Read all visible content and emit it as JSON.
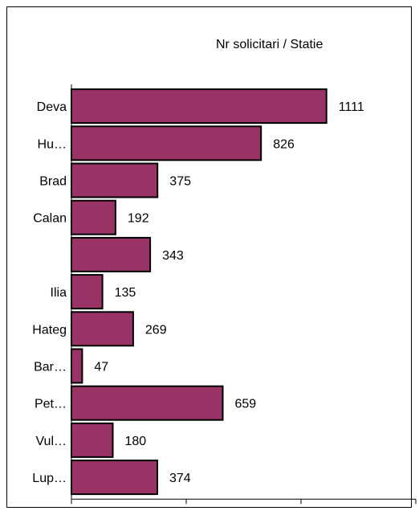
{
  "chart_data": {
    "type": "bar",
    "orientation": "horizontal",
    "title": "Nr solicitari / Statie",
    "categories": [
      "Deva",
      "Hu…",
      "Brad",
      "Calan",
      "",
      "Ilia",
      "Hateg",
      "Bar…",
      "Pet…",
      "Vul…",
      "Lup…"
    ],
    "values": [
      1111,
      826,
      375,
      192,
      343,
      135,
      269,
      47,
      659,
      180,
      374
    ],
    "data_labels": [
      "1111",
      "826",
      "375",
      "192",
      "343",
      "135",
      "269",
      "47",
      "659",
      "180",
      "374"
    ],
    "xlim": [
      0,
      1500
    ],
    "grid": false,
    "legend": "none",
    "colors": {
      "bar_fill": "#993366",
      "bar_stroke": "#000000"
    }
  }
}
